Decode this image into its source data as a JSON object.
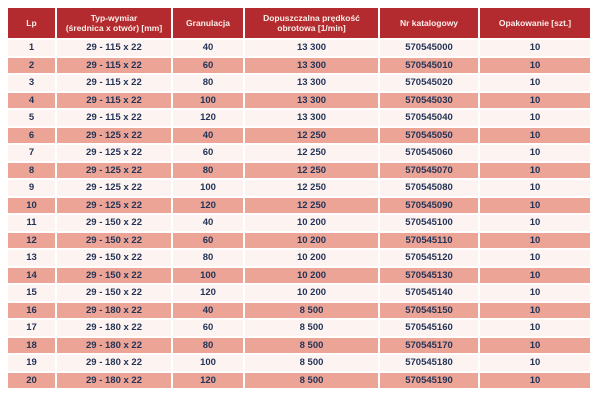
{
  "table": {
    "columns": [
      {
        "id": "lp",
        "label": "Lp"
      },
      {
        "id": "typ-wymiar",
        "label": "Typ-wymiar\n(średnica x otwór) [mm]"
      },
      {
        "id": "granulacja",
        "label": "Granulacja"
      },
      {
        "id": "predkosc",
        "label": "Dopuszczalna prędkość\nobrotowa [1/min]"
      },
      {
        "id": "nr-katalogowy",
        "label": "Nr katalogowy"
      },
      {
        "id": "opakowanie",
        "label": "Opakowanie [szt.]"
      }
    ],
    "rows": [
      [
        "1",
        "29 - 115 x 22",
        "40",
        "13 300",
        "570545000",
        "10"
      ],
      [
        "2",
        "29 - 115 x 22",
        "60",
        "13 300",
        "570545010",
        "10"
      ],
      [
        "3",
        "29 - 115 x 22",
        "80",
        "13 300",
        "570545020",
        "10"
      ],
      [
        "4",
        "29 - 115 x 22",
        "100",
        "13 300",
        "570545030",
        "10"
      ],
      [
        "5",
        "29 - 115 x 22",
        "120",
        "13 300",
        "570545040",
        "10"
      ],
      [
        "6",
        "29 - 125 x 22",
        "40",
        "12 250",
        "570545050",
        "10"
      ],
      [
        "7",
        "29 - 125 x 22",
        "60",
        "12 250",
        "570545060",
        "10"
      ],
      [
        "8",
        "29 - 125 x 22",
        "80",
        "12 250",
        "570545070",
        "10"
      ],
      [
        "9",
        "29 - 125 x 22",
        "100",
        "12 250",
        "570545080",
        "10"
      ],
      [
        "10",
        "29 - 125 x 22",
        "120",
        "12 250",
        "570545090",
        "10"
      ],
      [
        "11",
        "29 - 150 x 22",
        "40",
        "10 200",
        "570545100",
        "10"
      ],
      [
        "12",
        "29 - 150 x 22",
        "60",
        "10 200",
        "570545110",
        "10"
      ],
      [
        "13",
        "29 - 150 x 22",
        "80",
        "10 200",
        "570545120",
        "10"
      ],
      [
        "14",
        "29 - 150 x 22",
        "100",
        "10 200",
        "570545130",
        "10"
      ],
      [
        "15",
        "29 - 150 x 22",
        "120",
        "10 200",
        "570545140",
        "10"
      ],
      [
        "16",
        "29 - 180 x 22",
        "40",
        "8 500",
        "570545150",
        "10"
      ],
      [
        "17",
        "29 - 180 x 22",
        "60",
        "8 500",
        "570545160",
        "10"
      ],
      [
        "18",
        "29 - 180 x 22",
        "80",
        "8 500",
        "570545170",
        "10"
      ],
      [
        "19",
        "29 - 180 x 22",
        "100",
        "8 500",
        "570545180",
        "10"
      ],
      [
        "20",
        "29 - 180 x 22",
        "120",
        "8 500",
        "570545190",
        "10"
      ]
    ]
  },
  "colors": {
    "header_bg": "#b32b2f",
    "header_text": "#fceeea",
    "row_odd_bg": "#fdf3f1",
    "row_even_bg": "#eca496",
    "cell_text": "#233457",
    "separator": "#ffffff"
  }
}
